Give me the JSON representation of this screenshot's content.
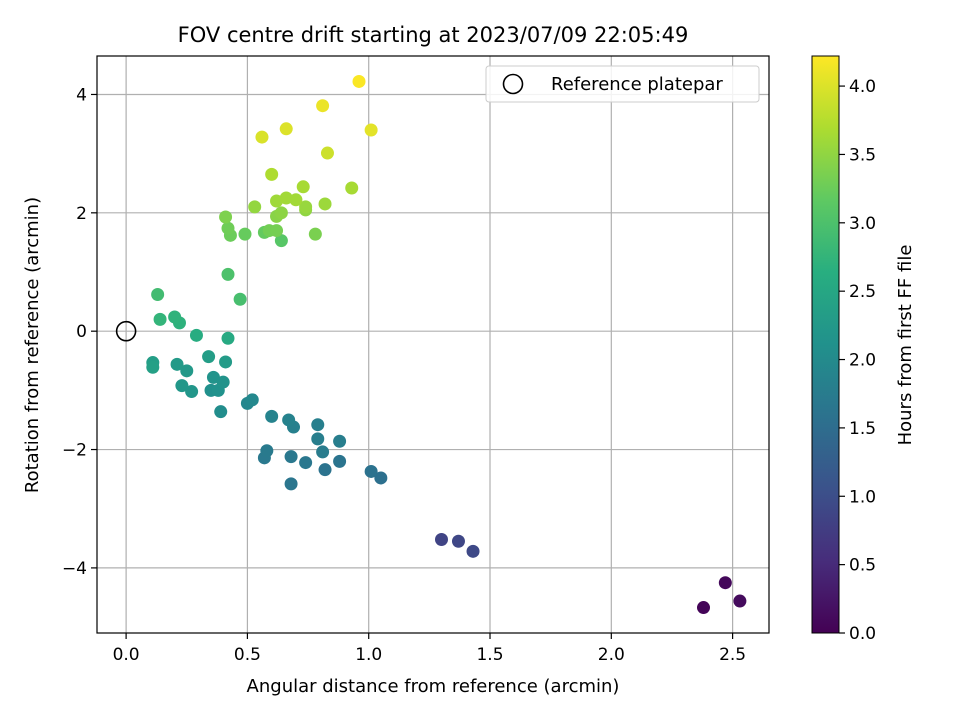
{
  "chart_data": {
    "type": "scatter",
    "title": "FOV centre drift starting at 2023/07/09 22:05:49",
    "xlabel": "Angular distance from reference (arcmin)",
    "ylabel": "Rotation from reference (arcmin)",
    "xlim": [
      -0.12,
      2.65
    ],
    "ylim": [
      -5.1,
      4.65
    ],
    "xticks": [
      0.0,
      0.5,
      1.0,
      1.5,
      2.0,
      2.5
    ],
    "xtick_labels": [
      "0.0",
      "0.5",
      "1.0",
      "1.5",
      "2.0",
      "2.5"
    ],
    "yticks": [
      -4,
      -2,
      0,
      2,
      4
    ],
    "ytick_labels": [
      "−4",
      "−2",
      "0",
      "2",
      "4"
    ],
    "grid": true,
    "legend": {
      "placement": "top-right",
      "entries": [
        {
          "label": "Reference platepar",
          "marker": "open-circle"
        }
      ]
    },
    "reference_point": {
      "x": 0.0,
      "y": 0.0
    },
    "colorbar": {
      "label": "Hours from first FF file",
      "colormap": "viridis",
      "range": [
        0.0,
        4.22
      ],
      "ticks": [
        0.0,
        0.5,
        1.0,
        1.5,
        2.0,
        2.5,
        3.0,
        3.5,
        4.0
      ],
      "tick_labels": [
        "0.0",
        "0.5",
        "1.0",
        "1.5",
        "2.0",
        "2.5",
        "3.0",
        "3.5",
        "4.0"
      ]
    },
    "points": [
      {
        "x": 2.38,
        "y": -4.67,
        "c": 0.05
      },
      {
        "x": 2.47,
        "y": -4.25,
        "c": 0.08
      },
      {
        "x": 2.53,
        "y": -4.56,
        "c": 0.12
      },
      {
        "x": 1.3,
        "y": -3.52,
        "c": 0.85
      },
      {
        "x": 1.37,
        "y": -3.55,
        "c": 0.9
      },
      {
        "x": 1.43,
        "y": -3.72,
        "c": 0.92
      },
      {
        "x": 1.05,
        "y": -2.48,
        "c": 1.55
      },
      {
        "x": 1.01,
        "y": -2.37,
        "c": 1.58
      },
      {
        "x": 0.82,
        "y": -2.34,
        "c": 1.6
      },
      {
        "x": 0.88,
        "y": -2.2,
        "c": 1.62
      },
      {
        "x": 0.68,
        "y": -2.58,
        "c": 1.65
      },
      {
        "x": 0.74,
        "y": -2.22,
        "c": 1.66
      },
      {
        "x": 0.68,
        "y": -2.12,
        "c": 1.68
      },
      {
        "x": 0.57,
        "y": -2.14,
        "c": 1.7
      },
      {
        "x": 0.58,
        "y": -2.02,
        "c": 1.72
      },
      {
        "x": 0.81,
        "y": -2.04,
        "c": 1.75
      },
      {
        "x": 0.79,
        "y": -1.82,
        "c": 1.78
      },
      {
        "x": 0.88,
        "y": -1.86,
        "c": 1.78
      },
      {
        "x": 0.79,
        "y": -1.58,
        "c": 1.8
      },
      {
        "x": 0.69,
        "y": -1.62,
        "c": 1.82
      },
      {
        "x": 0.67,
        "y": -1.5,
        "c": 1.85
      },
      {
        "x": 0.6,
        "y": -1.44,
        "c": 1.88
      },
      {
        "x": 0.5,
        "y": -1.22,
        "c": 1.92
      },
      {
        "x": 0.52,
        "y": -1.16,
        "c": 1.95
      },
      {
        "x": 0.39,
        "y": -1.36,
        "c": 2.05
      },
      {
        "x": 0.35,
        "y": -1.0,
        "c": 2.1
      },
      {
        "x": 0.38,
        "y": -1.0,
        "c": 2.12
      },
      {
        "x": 0.36,
        "y": -0.78,
        "c": 2.15
      },
      {
        "x": 0.4,
        "y": -0.86,
        "c": 2.15
      },
      {
        "x": 0.27,
        "y": -1.02,
        "c": 2.2
      },
      {
        "x": 0.23,
        "y": -0.92,
        "c": 2.22
      },
      {
        "x": 0.25,
        "y": -0.67,
        "c": 2.25
      },
      {
        "x": 0.21,
        "y": -0.56,
        "c": 2.28
      },
      {
        "x": 0.41,
        "y": -0.52,
        "c": 2.3
      },
      {
        "x": 0.34,
        "y": -0.43,
        "c": 2.32
      },
      {
        "x": 0.11,
        "y": -0.53,
        "c": 2.35
      },
      {
        "x": 0.11,
        "y": -0.61,
        "c": 2.38
      },
      {
        "x": 0.42,
        "y": -0.12,
        "c": 2.55
      },
      {
        "x": 0.29,
        "y": -0.07,
        "c": 2.6
      },
      {
        "x": 0.22,
        "y": 0.14,
        "c": 2.7
      },
      {
        "x": 0.2,
        "y": 0.24,
        "c": 2.72
      },
      {
        "x": 0.14,
        "y": 0.2,
        "c": 2.75
      },
      {
        "x": 0.13,
        "y": 0.62,
        "c": 2.9
      },
      {
        "x": 0.47,
        "y": 0.54,
        "c": 2.95
      },
      {
        "x": 0.42,
        "y": 0.96,
        "c": 3.0
      },
      {
        "x": 0.64,
        "y": 1.53,
        "c": 3.1
      },
      {
        "x": 0.57,
        "y": 1.67,
        "c": 3.2
      },
      {
        "x": 0.49,
        "y": 1.64,
        "c": 3.22
      },
      {
        "x": 0.43,
        "y": 1.62,
        "c": 3.25
      },
      {
        "x": 0.42,
        "y": 1.74,
        "c": 3.28
      },
      {
        "x": 0.59,
        "y": 1.7,
        "c": 3.3
      },
      {
        "x": 0.62,
        "y": 1.7,
        "c": 3.32
      },
      {
        "x": 0.78,
        "y": 1.64,
        "c": 3.35
      },
      {
        "x": 0.41,
        "y": 1.93,
        "c": 3.38
      },
      {
        "x": 0.62,
        "y": 1.94,
        "c": 3.45
      },
      {
        "x": 0.64,
        "y": 2.0,
        "c": 3.48
      },
      {
        "x": 0.74,
        "y": 2.05,
        "c": 3.5
      },
      {
        "x": 0.53,
        "y": 2.1,
        "c": 3.52
      },
      {
        "x": 0.74,
        "y": 2.1,
        "c": 3.55
      },
      {
        "x": 0.82,
        "y": 2.15,
        "c": 3.58
      },
      {
        "x": 0.62,
        "y": 2.2,
        "c": 3.6
      },
      {
        "x": 0.66,
        "y": 2.25,
        "c": 3.62
      },
      {
        "x": 0.7,
        "y": 2.22,
        "c": 3.62
      },
      {
        "x": 0.73,
        "y": 2.44,
        "c": 3.65
      },
      {
        "x": 0.93,
        "y": 2.42,
        "c": 3.65
      },
      {
        "x": 0.6,
        "y": 2.65,
        "c": 3.7
      },
      {
        "x": 0.83,
        "y": 3.01,
        "c": 3.9
      },
      {
        "x": 0.56,
        "y": 3.28,
        "c": 3.98
      },
      {
        "x": 0.66,
        "y": 3.42,
        "c": 4.0
      },
      {
        "x": 1.01,
        "y": 3.4,
        "c": 4.05
      },
      {
        "x": 0.81,
        "y": 3.81,
        "c": 4.1
      },
      {
        "x": 0.96,
        "y": 4.22,
        "c": 4.2
      }
    ]
  }
}
